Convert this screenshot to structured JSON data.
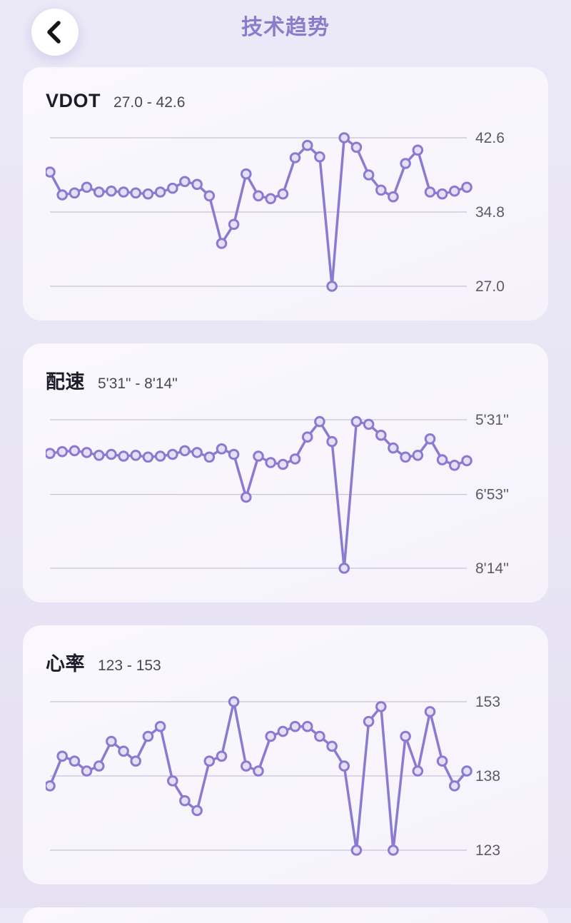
{
  "header": {
    "title": "技术趋势",
    "back_icon": "chevron-left"
  },
  "theme": {
    "accent": "#8a7bd0",
    "marker_fill": "#e6e0f6",
    "page_bg_top": "#ebe8f7",
    "page_bg_bottom": "#e5e1f2",
    "card_bg": "#f5f2fb",
    "grid_line": "#c9c4d8",
    "axis_label": "#5d5a66",
    "title_text": "#1f1c2a",
    "subtitle_text": "#4a4754",
    "header_title": "#8a7dcb"
  },
  "chart_data": [
    {
      "type": "line",
      "title": "VDOT",
      "range_label": "27.0 - 42.6",
      "y_top": 42.6,
      "y_bottom": 27.0,
      "ylim": [
        27.0,
        42.6
      ],
      "grid": true,
      "legend": "none",
      "gridlines": [
        {
          "value": 42.6,
          "label": "42.6"
        },
        {
          "value": 34.8,
          "label": "34.8"
        },
        {
          "value": 27.0,
          "label": "27.0"
        }
      ],
      "values": [
        39.0,
        36.6,
        36.8,
        37.4,
        36.9,
        37.0,
        36.9,
        36.8,
        36.7,
        36.9,
        37.3,
        38.0,
        37.7,
        36.5,
        31.5,
        33.5,
        38.8,
        36.5,
        36.2,
        36.7,
        40.5,
        41.8,
        40.6,
        27.0,
        42.6,
        41.6,
        38.7,
        37.1,
        36.4,
        39.9,
        41.3,
        36.9,
        36.7,
        37.0,
        37.4
      ]
    },
    {
      "type": "line",
      "title": "配速",
      "range_label": "5'31\" - 8'14\"",
      "y_top": 331,
      "y_bottom": 494,
      "ylim": [
        331,
        494
      ],
      "grid": true,
      "legend": "none",
      "gridlines": [
        {
          "value": 331,
          "label": "5'31''"
        },
        {
          "value": 413,
          "label": "6'53''"
        },
        {
          "value": 494,
          "label": "8'14''"
        }
      ],
      "values": [
        368,
        366,
        365,
        367,
        370,
        369,
        371,
        370,
        372,
        371,
        369,
        365,
        367,
        372,
        363,
        369,
        416,
        371,
        378,
        380,
        374,
        350,
        333,
        355,
        494,
        333,
        336,
        348,
        362,
        372,
        370,
        352,
        375,
        381,
        376
      ]
    },
    {
      "type": "line",
      "title": "心率",
      "range_label": "123 - 153",
      "y_top": 153,
      "y_bottom": 123,
      "ylim": [
        123,
        153
      ],
      "grid": true,
      "legend": "none",
      "gridlines": [
        {
          "value": 153,
          "label": "153"
        },
        {
          "value": 138,
          "label": "138"
        },
        {
          "value": 123,
          "label": "123"
        }
      ],
      "values": [
        136,
        142,
        141,
        139,
        140,
        145,
        143,
        141,
        146,
        148,
        137,
        133,
        131,
        141,
        142,
        153,
        140,
        139,
        146,
        147,
        148,
        148,
        146,
        144,
        140,
        123,
        149,
        152,
        123,
        146,
        139,
        151,
        141,
        136,
        139
      ]
    }
  ]
}
